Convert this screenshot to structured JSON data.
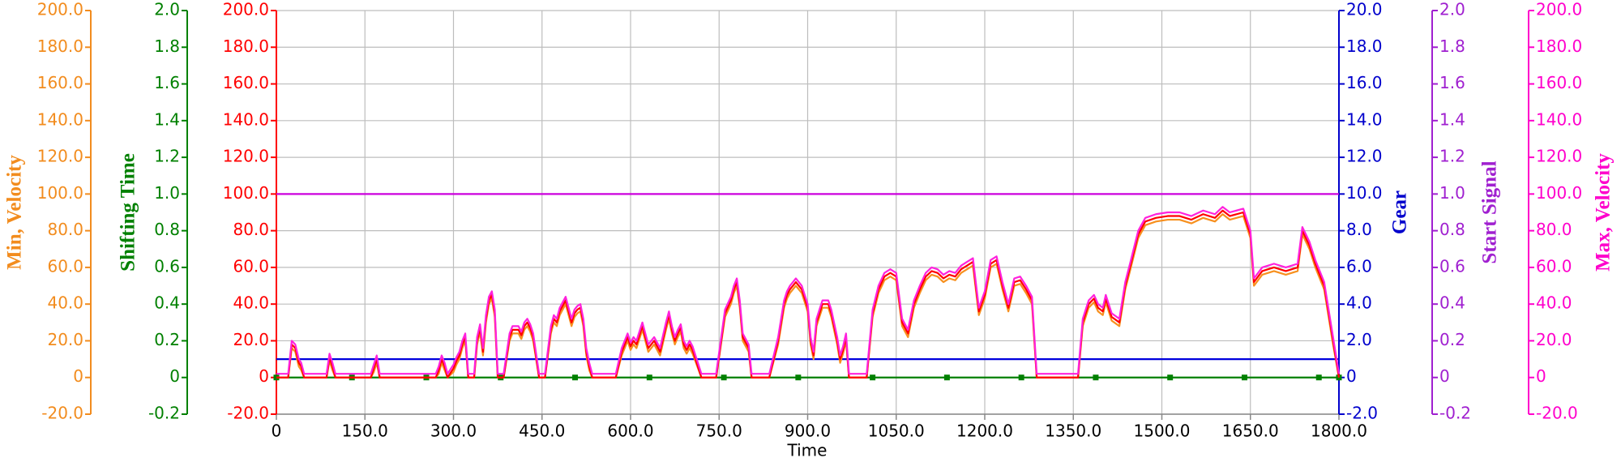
{
  "chart_data": {
    "type": "line",
    "xlabel": "Time",
    "grid": true,
    "xlim": [
      0,
      1800
    ],
    "xticks": [
      0,
      {
        "value": 150,
        "label": "150.0"
      },
      {
        "value": 300,
        "label": "300.0"
      },
      {
        "value": 450,
        "label": "450.0"
      },
      {
        "value": 600,
        "label": "600.0"
      },
      {
        "value": 750,
        "label": "750.0"
      },
      {
        "value": 900,
        "label": "900.0"
      },
      {
        "value": 1050,
        "label": "1050.0"
      },
      {
        "value": 1200,
        "label": "1200.0"
      },
      {
        "value": 1350,
        "label": "1350.0"
      },
      {
        "value": 1500,
        "label": "1500.0"
      },
      {
        "value": 1650,
        "label": "1650.0"
      },
      {
        "value": 1800,
        "label": "1800.0"
      }
    ],
    "axes": [
      {
        "label": "Min, Velocity",
        "color": "#f28c1e",
        "lim": [
          -20,
          200
        ],
        "ticks": [
          {
            "value": -20,
            "label": "-20.0"
          },
          0,
          {
            "value": 20,
            "label": "20.0"
          },
          {
            "value": 40,
            "label": "40.0"
          },
          {
            "value": 60,
            "label": "60.0"
          },
          {
            "value": 80,
            "label": "80.0"
          },
          {
            "value": 100,
            "label": "100.0"
          },
          {
            "value": 120,
            "label": "120.0"
          },
          {
            "value": 140,
            "label": "140.0"
          },
          {
            "value": 160,
            "label": "160.0"
          },
          {
            "value": 180,
            "label": "180.0"
          },
          {
            "value": 200,
            "label": "200.0"
          }
        ]
      },
      {
        "label": "Shifting Time",
        "color": "#008000",
        "lim": [
          -0.2,
          2
        ],
        "ticks": [
          -0.2,
          0,
          0.2,
          0.4,
          0.6,
          0.8,
          {
            "value": 1,
            "label": "1.0"
          },
          1.2,
          1.4,
          1.6,
          1.8,
          {
            "value": 2,
            "label": "2.0"
          }
        ]
      },
      {
        "color": "#ff0000",
        "lim": [
          -20,
          200
        ],
        "ticks": [
          {
            "value": -20,
            "label": "-20.0"
          },
          0,
          {
            "value": 20,
            "label": "20.0"
          },
          {
            "value": 40,
            "label": "40.0"
          },
          {
            "value": 60,
            "label": "60.0"
          },
          {
            "value": 80,
            "label": "80.0"
          },
          {
            "value": 100,
            "label": "100.0"
          },
          {
            "value": 120,
            "label": "120.0"
          },
          {
            "value": 140,
            "label": "140.0"
          },
          {
            "value": 160,
            "label": "160.0"
          },
          {
            "value": 180,
            "label": "180.0"
          },
          {
            "value": 200,
            "label": "200.0"
          }
        ]
      },
      {
        "label": "Gear",
        "color": "#0000cc",
        "lim": [
          -2,
          20
        ],
        "ticks": [
          {
            "value": -2,
            "label": "-2.0"
          },
          0,
          {
            "value": 2,
            "label": "2.0"
          },
          {
            "value": 4,
            "label": "4.0"
          },
          {
            "value": 6,
            "label": "6.0"
          },
          {
            "value": 8,
            "label": "8.0"
          },
          {
            "value": 10,
            "label": "10.0"
          },
          {
            "value": 12,
            "label": "12.0"
          },
          {
            "value": 14,
            "label": "14.0"
          },
          {
            "value": 16,
            "label": "16.0"
          },
          {
            "value": 18,
            "label": "18.0"
          },
          {
            "value": 20,
            "label": "20.0"
          }
        ]
      },
      {
        "label": "Start Signal",
        "color": "#a020d0",
        "lim": [
          -0.2,
          2
        ],
        "ticks": [
          -0.2,
          0,
          0.2,
          0.4,
          0.6,
          0.8,
          {
            "value": 1,
            "label": "1.0"
          },
          1.2,
          1.4,
          1.6,
          1.8,
          {
            "value": 2,
            "label": "2.0"
          }
        ]
      },
      {
        "label": "Max, Velocity",
        "color": "#ff00cc",
        "lim": [
          -20,
          200
        ],
        "ticks": [
          {
            "value": -20,
            "label": "-20.0"
          },
          0,
          {
            "value": 20,
            "label": "20.0"
          },
          {
            "value": 40,
            "label": "40.0"
          },
          {
            "value": 60,
            "label": "60.0"
          },
          {
            "value": 80,
            "label": "80.0"
          },
          {
            "value": 100,
            "label": "100.0"
          },
          {
            "value": 120,
            "label": "120.0"
          },
          {
            "value": 140,
            "label": "140.0"
          },
          {
            "value": 160,
            "label": "160.0"
          },
          {
            "value": 180,
            "label": "180.0"
          },
          {
            "value": 200,
            "label": "200.0"
          }
        ]
      }
    ],
    "x": [
      0,
      20,
      26,
      32,
      38,
      42,
      47,
      85,
      90,
      95,
      100,
      160,
      165,
      170,
      175,
      260,
      270,
      275,
      280,
      285,
      290,
      300,
      305,
      310,
      315,
      320,
      325,
      335,
      340,
      345,
      350,
      355,
      360,
      365,
      370,
      375,
      385,
      395,
      400,
      410,
      415,
      420,
      425,
      430,
      435,
      445,
      455,
      465,
      470,
      475,
      480,
      485,
      490,
      495,
      500,
      505,
      510,
      515,
      520,
      525,
      530,
      535,
      575,
      585,
      595,
      600,
      605,
      610,
      615,
      620,
      625,
      630,
      640,
      650,
      660,
      665,
      670,
      675,
      680,
      685,
      690,
      695,
      700,
      705,
      720,
      745,
      760,
      770,
      775,
      780,
      785,
      790,
      800,
      805,
      835,
      850,
      860,
      865,
      870,
      875,
      880,
      890,
      900,
      905,
      910,
      915,
      925,
      935,
      940,
      950,
      955,
      960,
      965,
      970,
      1000,
      1010,
      1020,
      1030,
      1040,
      1050,
      1060,
      1070,
      1080,
      1090,
      1100,
      1110,
      1120,
      1130,
      1140,
      1150,
      1160,
      1170,
      1180,
      1190,
      1200,
      1210,
      1220,
      1230,
      1240,
      1250,
      1260,
      1270,
      1280,
      1288,
      1358,
      1366,
      1376,
      1385,
      1392,
      1400,
      1405,
      1415,
      1428,
      1438,
      1446,
      1460,
      1472,
      1490,
      1510,
      1530,
      1550,
      1570,
      1590,
      1603,
      1615,
      1638,
      1650,
      1656,
      1670,
      1690,
      1710,
      1730,
      1738,
      1750,
      1760,
      1775,
      1790,
      1800
    ],
    "series": [
      {
        "color": "#008000",
        "axis": 1,
        "markers": true,
        "x": [
          0,
          128,
          254,
          380,
          506,
          632,
          758,
          884,
          1010,
          1136,
          1262,
          1388,
          1514,
          1640,
          1766,
          1800
        ],
        "values": [
          0,
          0,
          0,
          0,
          0,
          0,
          0,
          0,
          0,
          0,
          0,
          0,
          0,
          0,
          0,
          0
        ]
      },
      {
        "color": "#0000dd",
        "axis": 3,
        "x": [
          0,
          1800
        ],
        "values": [
          1,
          1
        ]
      },
      {
        "color": "#cc00dd",
        "axis": 4,
        "x": [
          0,
          1800
        ],
        "values": [
          1,
          1
        ]
      },
      {
        "color": "#f7901e",
        "axis": 0,
        "values": [
          0,
          0,
          16,
          14,
          6,
          4,
          0,
          0,
          9,
          4,
          0,
          0,
          3,
          8,
          0,
          0,
          0,
          2,
          8,
          4,
          0,
          3,
          7,
          10,
          16,
          20,
          0,
          0,
          18,
          25,
          12,
          30,
          40,
          43,
          33,
          0,
          0,
          20,
          24,
          24,
          21,
          26,
          28,
          25,
          20,
          0,
          0,
          24,
          30,
          28,
          34,
          37,
          40,
          34,
          28,
          33,
          35,
          36,
          28,
          12,
          4,
          0,
          0,
          12,
          20,
          15,
          18,
          16,
          21,
          26,
          20,
          14,
          18,
          12,
          26,
          32,
          24,
          18,
          22,
          25,
          16,
          13,
          16,
          13,
          0,
          0,
          33,
          40,
          46,
          50,
          38,
          20,
          14,
          0,
          0,
          18,
          38,
          43,
          46,
          48,
          50,
          46,
          36,
          18,
          10,
          28,
          38,
          38,
          33,
          18,
          8,
          13,
          20,
          0,
          0,
          33,
          46,
          53,
          55,
          53,
          28,
          22,
          38,
          46,
          53,
          56,
          55,
          52,
          54,
          53,
          57,
          59,
          61,
          34,
          43,
          60,
          62,
          48,
          36,
          50,
          51,
          46,
          40,
          0,
          0,
          28,
          38,
          41,
          36,
          34,
          41,
          31,
          28,
          48,
          58,
          76,
          83,
          85,
          86,
          86,
          84,
          87,
          85,
          89,
          86,
          88,
          76,
          50,
          56,
          58,
          56,
          58,
          78,
          70,
          60,
          48,
          18,
          0
        ]
      },
      {
        "color": "#ff0000",
        "axis": 2,
        "values": [
          0,
          0,
          18,
          16,
          8,
          6,
          0,
          0,
          11,
          6,
          0,
          0,
          5,
          10,
          0,
          0,
          0,
          4,
          10,
          6,
          0,
          5,
          9,
          12,
          18,
          22,
          0,
          0,
          20,
          27,
          14,
          32,
          42,
          45,
          35,
          0,
          0,
          22,
          26,
          26,
          23,
          28,
          30,
          27,
          22,
          0,
          0,
          26,
          32,
          30,
          36,
          39,
          42,
          36,
          30,
          35,
          37,
          38,
          30,
          14,
          6,
          0,
          0,
          14,
          22,
          17,
          20,
          18,
          23,
          28,
          22,
          16,
          20,
          14,
          28,
          34,
          26,
          20,
          24,
          27,
          18,
          15,
          18,
          15,
          0,
          0,
          35,
          42,
          48,
          52,
          40,
          22,
          16,
          0,
          0,
          20,
          40,
          45,
          48,
          50,
          52,
          48,
          38,
          20,
          12,
          30,
          40,
          40,
          35,
          20,
          10,
          15,
          22,
          0,
          0,
          35,
          48,
          55,
          57,
          55,
          30,
          24,
          40,
          48,
          55,
          58,
          57,
          54,
          56,
          55,
          59,
          61,
          63,
          36,
          45,
          62,
          64,
          50,
          38,
          52,
          53,
          48,
          42,
          0,
          0,
          30,
          40,
          43,
          38,
          36,
          43,
          33,
          30,
          50,
          60,
          78,
          85,
          87,
          88,
          88,
          86,
          89,
          87,
          91,
          88,
          90,
          78,
          52,
          58,
          60,
          58,
          60,
          80,
          72,
          62,
          50,
          20,
          0
        ]
      },
      {
        "color": "#ff22dd",
        "axis": 5,
        "values": [
          2,
          2,
          20,
          18,
          10,
          8,
          2,
          2,
          13,
          8,
          2,
          2,
          7,
          12,
          2,
          2,
          2,
          6,
          12,
          8,
          2,
          7,
          11,
          14,
          20,
          24,
          2,
          2,
          22,
          29,
          16,
          34,
          44,
          47,
          37,
          2,
          2,
          24,
          28,
          28,
          25,
          30,
          32,
          29,
          24,
          2,
          2,
          28,
          34,
          32,
          38,
          41,
          44,
          38,
          32,
          37,
          39,
          40,
          32,
          16,
          8,
          2,
          2,
          16,
          24,
          19,
          22,
          20,
          25,
          30,
          24,
          18,
          22,
          16,
          30,
          36,
          28,
          22,
          26,
          29,
          20,
          17,
          20,
          17,
          2,
          2,
          37,
          44,
          50,
          54,
          42,
          24,
          18,
          2,
          2,
          22,
          42,
          47,
          50,
          52,
          54,
          50,
          40,
          22,
          14,
          32,
          42,
          42,
          37,
          22,
          12,
          17,
          24,
          2,
          2,
          37,
          50,
          57,
          59,
          57,
          32,
          26,
          42,
          50,
          57,
          60,
          59,
          56,
          58,
          57,
          61,
          63,
          65,
          38,
          47,
          64,
          66,
          52,
          40,
          54,
          55,
          50,
          44,
          2,
          2,
          32,
          42,
          45,
          40,
          38,
          45,
          35,
          32,
          52,
          62,
          80,
          87,
          89,
          90,
          90,
          88,
          91,
          89,
          93,
          90,
          92,
          80,
          54,
          60,
          62,
          60,
          62,
          82,
          74,
          64,
          52,
          22,
          2
        ]
      }
    ]
  }
}
